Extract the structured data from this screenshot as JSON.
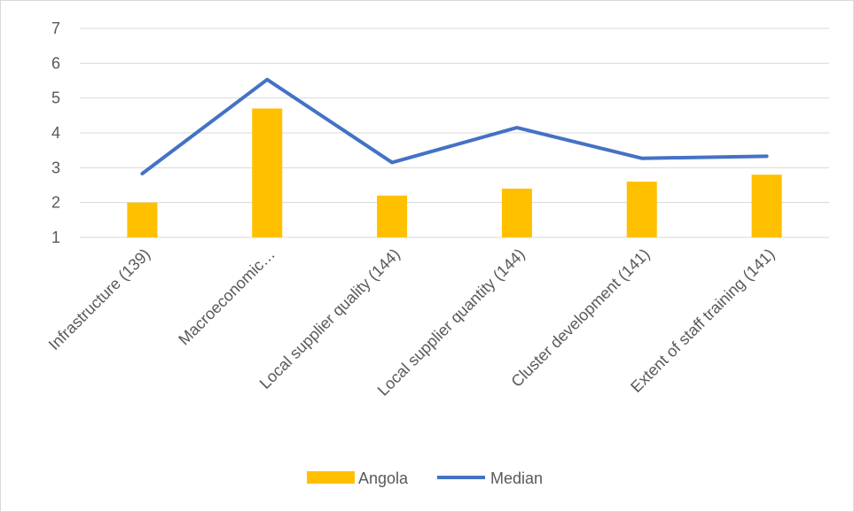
{
  "chart_data": {
    "type": "bar",
    "categories": [
      "Infrastructure (139)",
      "Macroeconomic…",
      "Local supplier quality (144)",
      "Local supplier quantity (144)",
      "Cluster development (141)",
      "Extent of staff training (141)"
    ],
    "series": [
      {
        "name": "Angola",
        "type": "bar",
        "color": "#FFC000",
        "values": [
          2.0,
          4.7,
          2.2,
          2.4,
          2.6,
          2.8
        ]
      },
      {
        "name": "Median",
        "type": "line",
        "color": "#4472C4",
        "values": [
          2.83,
          5.53,
          3.15,
          4.15,
          3.27,
          3.33
        ]
      }
    ],
    "y_ticks": [
      "1",
      "2",
      "3",
      "4",
      "5",
      "6",
      "7"
    ],
    "ylim": [
      1,
      7
    ],
    "grid": true,
    "legend": "bottom-center"
  }
}
